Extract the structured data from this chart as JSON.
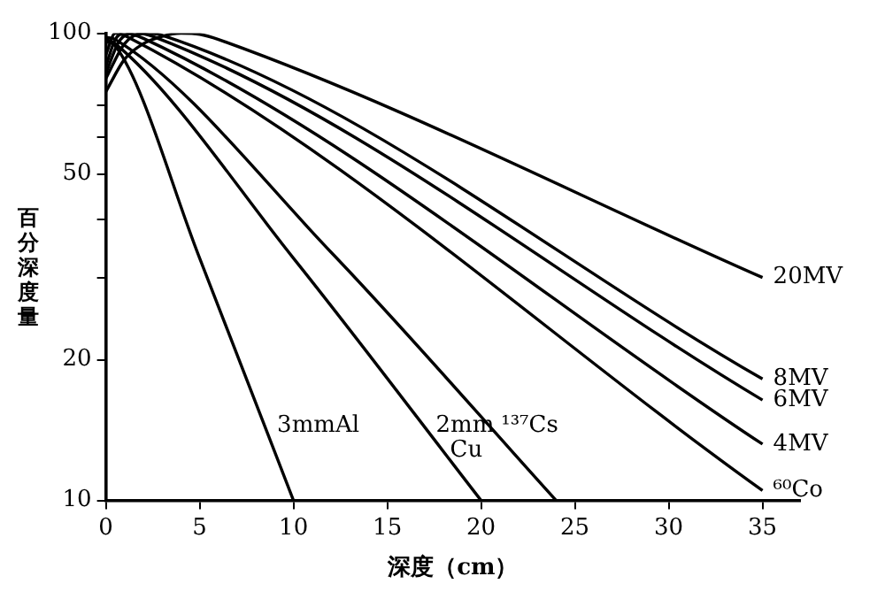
{
  "chart_data": {
    "type": "line",
    "xlabel": "深度（cm）",
    "ylabel": "百分深度量",
    "log": "y",
    "grid": false,
    "legend": false,
    "marker": "none",
    "line_style": "solid",
    "xlim": [
      0,
      37
    ],
    "xticks": [
      0,
      5,
      10,
      15,
      20,
      25,
      30,
      35
    ],
    "ylim": [
      10,
      100
    ],
    "yticks": [
      10,
      20,
      {
        "value": 30,
        "label": null
      },
      {
        "value": 40,
        "label": null
      },
      50,
      {
        "value": 60,
        "label": null
      },
      {
        "value": 70,
        "label": null
      },
      100
    ],
    "series": [
      {
        "name": "20MV",
        "color": "#000000",
        "x": [
          0,
          1,
          2,
          3,
          4,
          5,
          6,
          35
        ],
        "values": [
          75,
          88,
          95,
          98.5,
          100,
          99.5,
          97,
          30
        ]
      },
      {
        "name": "8MV",
        "color": "#000000",
        "x": [
          0,
          1,
          2,
          3,
          35
        ],
        "values": [
          80,
          95,
          100,
          99,
          18.2
        ]
      },
      {
        "name": "6MV",
        "color": "#000000",
        "x": [
          0,
          0.7,
          1.5,
          2.5,
          35
        ],
        "values": [
          82,
          96,
          100,
          98.5,
          16.4
        ]
      },
      {
        "name": "4MV",
        "color": "#000000",
        "x": [
          0,
          0.5,
          1,
          2,
          35
        ],
        "values": [
          85,
          97,
          100,
          97.5,
          13.2
        ]
      },
      {
        "name": "⁶⁰Co",
        "color": "#000000",
        "x": [
          0,
          0.5,
          1.2,
          35
        ],
        "values": [
          90,
          100,
          98,
          10.5
        ]
      },
      {
        "name": "3mmAl",
        "color": "#000000",
        "x": [
          0,
          0.5,
          5,
          10
        ],
        "values": [
          96,
          94,
          33,
          10
        ]
      },
      {
        "name": "2mm Cu",
        "color": "#000000",
        "x": [
          0,
          0.5,
          10,
          20
        ],
        "values": [
          97,
          95,
          33,
          10
        ]
      },
      {
        "name": "¹³⁷Cs",
        "color": "#000000",
        "x": [
          0,
          0.5,
          12,
          24
        ],
        "values": [
          98,
          97,
          34,
          10
        ]
      }
    ]
  }
}
